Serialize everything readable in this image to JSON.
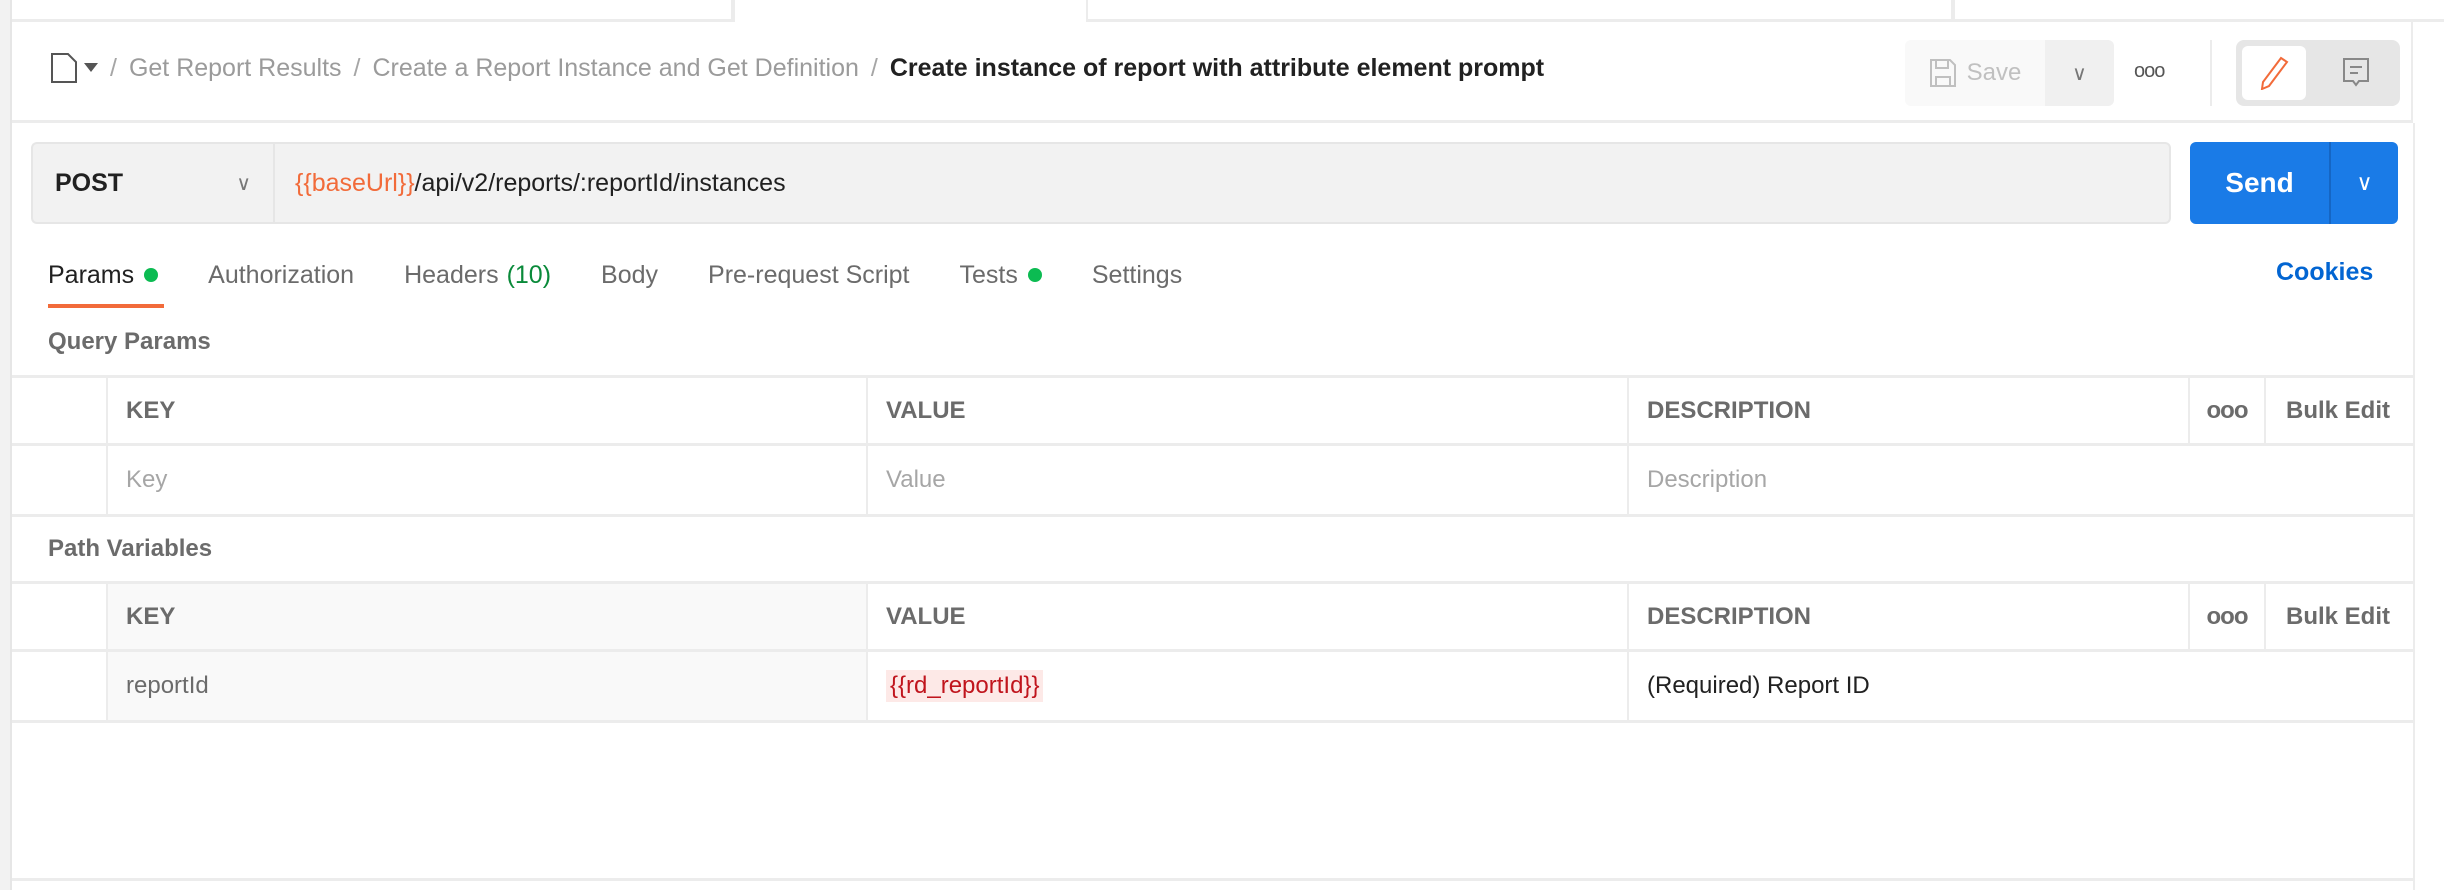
{
  "breadcrumb": {
    "items": [
      "Get Report Results",
      "Create a Report Instance and Get Definition"
    ],
    "current": "Create instance of report with attribute element prompt",
    "separator": "/"
  },
  "toolbar": {
    "save_label": "Save",
    "more_icon": "ooo"
  },
  "request": {
    "method": "POST",
    "url_var": "{{baseUrl}}",
    "url_path": "/api/v2/reports/:reportId/instances",
    "send_label": "Send"
  },
  "tabs": [
    {
      "label": "Params",
      "dot": true
    },
    {
      "label": "Authorization"
    },
    {
      "label": "Headers",
      "count": "(10)"
    },
    {
      "label": "Body"
    },
    {
      "label": "Pre-request Script"
    },
    {
      "label": "Tests",
      "dot": true
    },
    {
      "label": "Settings"
    }
  ],
  "cookies_label": "Cookies",
  "query_params": {
    "title": "Query Params",
    "headers": [
      "KEY",
      "VALUE",
      "DESCRIPTION"
    ],
    "more": "ooo",
    "bulk_edit": "Bulk Edit",
    "placeholders": {
      "key": "Key",
      "value": "Value",
      "description": "Description"
    }
  },
  "path_variables": {
    "title": "Path Variables",
    "headers": [
      "KEY",
      "VALUE",
      "DESCRIPTION"
    ],
    "more": "ooo",
    "bulk_edit": "Bulk Edit",
    "rows": [
      {
        "key": "reportId",
        "value": "{{rd_reportId}}",
        "description": "(Required) Report ID"
      }
    ]
  },
  "colors": {
    "accent": "#f26b3a",
    "send": "#1a7be7",
    "link": "#0265d2",
    "dot": "#0cbb52",
    "var_error": "#c0151d"
  }
}
